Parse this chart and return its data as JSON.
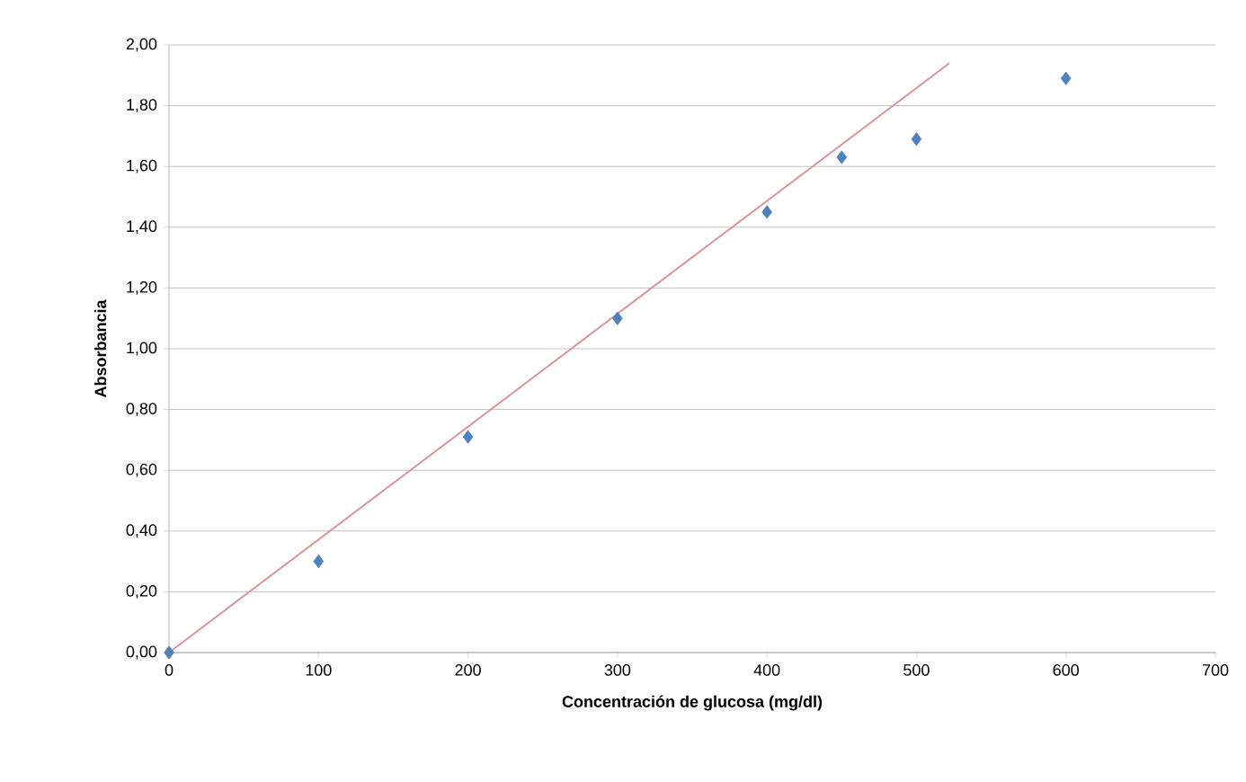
{
  "chart_data": {
    "type": "scatter",
    "xlabel": "Concentración de glucosa (mg/dl)",
    "ylabel": "Absorbancia",
    "x": [
      0,
      100,
      200,
      300,
      400,
      450,
      500,
      600
    ],
    "series": [
      {
        "type": "scatter",
        "color": "#4f81bd",
        "marker": "diamond",
        "values": [
          0,
          0.3,
          0.71,
          1.1,
          1.45,
          1.63,
          1.69,
          1.89
        ]
      },
      {
        "type": "line",
        "color": "#d99694",
        "marker": "none",
        "line_style": "solid",
        "x": [
          0,
          522
        ],
        "values": [
          0,
          1.94
        ]
      }
    ],
    "xlim": [
      0,
      700
    ],
    "xticks": [
      0,
      100,
      200,
      300,
      400,
      500,
      600,
      700
    ],
    "ylim": [
      0,
      2
    ],
    "yticks": [
      {
        "value": 0,
        "label": "0,00"
      },
      {
        "value": 0.2,
        "label": "0,20"
      },
      {
        "value": 0.4,
        "label": "0,40"
      },
      {
        "value": 0.6,
        "label": "0,60"
      },
      {
        "value": 0.8,
        "label": "0,80"
      },
      {
        "value": 1.0,
        "label": "1,00"
      },
      {
        "value": 1.2,
        "label": "1,20"
      },
      {
        "value": 1.4,
        "label": "1,40"
      },
      {
        "value": 1.6,
        "label": "1,60"
      },
      {
        "value": 1.8,
        "label": "1,80"
      },
      {
        "value": 2.0,
        "label": "2,00"
      }
    ],
    "grid": "y"
  }
}
